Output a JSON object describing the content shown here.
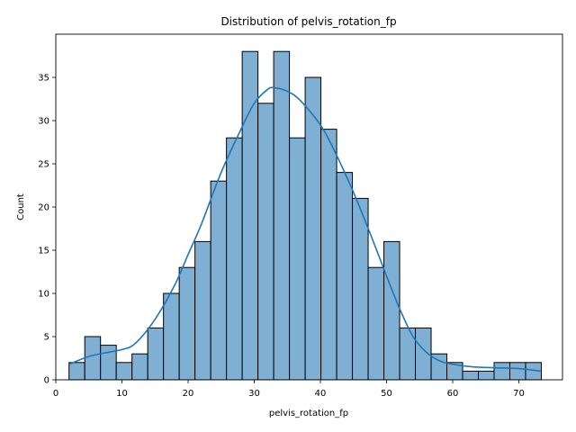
{
  "chart_data": {
    "type": "histogram",
    "title": "Distribution of pelvis_rotation_fp",
    "xlabel": "pelvis_rotation_fp",
    "ylabel": "Count",
    "xlim": [
      0.0,
      76.6
    ],
    "ylim": [
      0,
      40
    ],
    "x_ticks": [
      0,
      10,
      20,
      30,
      40,
      50,
      60,
      70
    ],
    "y_ticks": [
      0,
      5,
      10,
      15,
      20,
      25,
      30,
      35
    ],
    "bin_start": 2.0,
    "bin_width": 2.38,
    "counts": [
      2,
      5,
      4,
      2,
      3,
      6,
      10,
      13,
      16,
      23,
      28,
      38,
      32,
      38,
      28,
      35,
      29,
      24,
      21,
      13,
      16,
      6,
      6,
      3,
      2,
      1,
      1,
      2,
      2,
      2
    ],
    "kde": {
      "x": [
        2,
        5,
        8,
        10,
        12,
        15,
        18,
        20,
        22,
        25,
        28,
        30,
        32,
        33,
        35,
        37,
        40,
        42,
        45,
        48,
        50,
        52,
        54,
        56,
        58,
        60,
        63,
        66,
        70,
        73.4
      ],
      "y": [
        1.8,
        2.7,
        3.2,
        3.5,
        4.2,
        7.0,
        11.0,
        14.5,
        18.0,
        24.0,
        29.0,
        32.0,
        33.6,
        33.8,
        33.4,
        32.3,
        29.5,
        26.7,
        21.7,
        16.0,
        12.0,
        8.2,
        5.0,
        3.2,
        2.2,
        1.8,
        1.5,
        1.4,
        1.3,
        1.0
      ]
    },
    "bar_color": "#7fb0d4",
    "bar_edge": "#000000",
    "line_color": "#1f77b4",
    "grid": false
  }
}
